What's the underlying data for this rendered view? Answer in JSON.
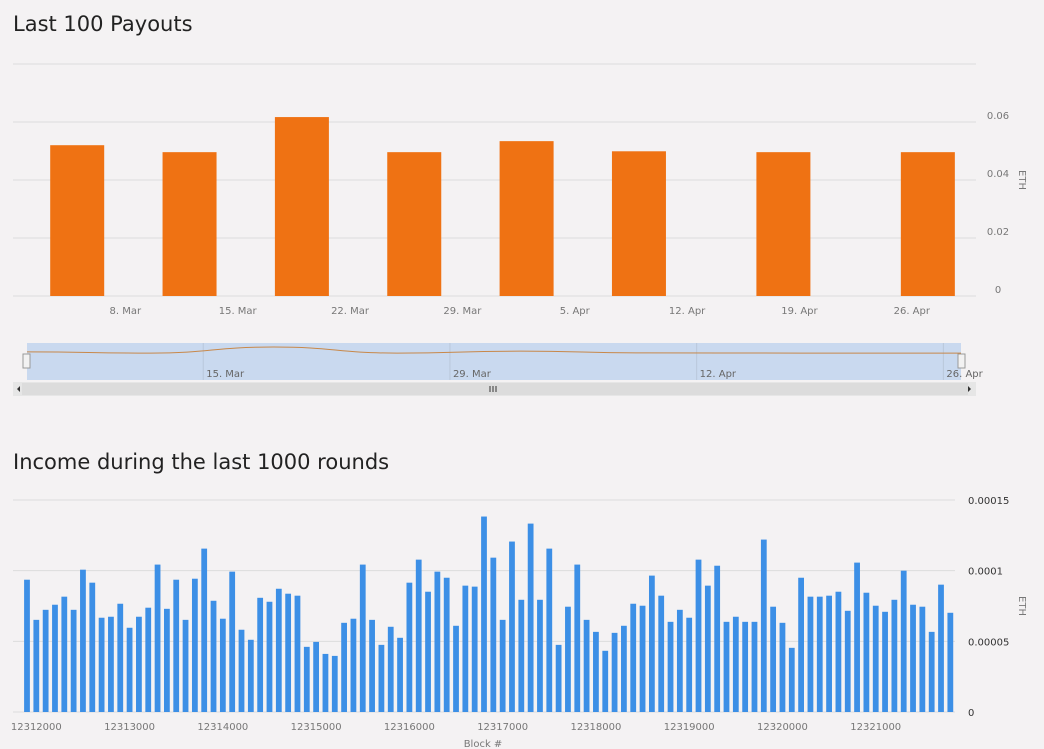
{
  "charts": [
    {
      "type": "bar",
      "title": "Last 100 Payouts",
      "y_axis_label": "ETH",
      "color": "#ef7213",
      "x": [
        "5. Mar",
        "12. Mar",
        "19. Mar",
        "26. Mar",
        "2. Apr",
        "9. Apr",
        "18. Apr",
        "27. Apr"
      ],
      "values": [
        0.052,
        0.0496,
        0.0617,
        0.0496,
        0.0534,
        0.0499,
        0.0496,
        0.0496
      ],
      "xlim": [
        "1. Mar",
        "30. Apr"
      ],
      "xticks": [
        "8. Mar",
        "15. Mar",
        "22. Mar",
        "29. Mar",
        "5. Apr",
        "12. Apr",
        "19. Apr",
        "26. Apr"
      ],
      "ylim": [
        0,
        0.08
      ],
      "yticks": [
        0,
        0.02,
        0.04,
        0.06
      ],
      "grid": true,
      "navigator": {
        "xlim": [
          "5. Mar",
          "27. Apr"
        ],
        "xticks": [
          "15. Mar",
          "29. Mar",
          "12. Apr",
          "26. Apr"
        ],
        "line_color": "#c8884a"
      }
    },
    {
      "type": "bar",
      "title": "Income during the last 1000 rounds",
      "x_axis_label": "Block #",
      "y_axis_label": "ETH",
      "color": "#3c8fe6",
      "x0": 12311900,
      "x_step": 100,
      "values": [
        9.36e-05,
        6.52e-05,
        7.23e-05,
        7.59e-05,
        8.16e-05,
        7.23e-05,
        0.0001007,
        9.15e-05,
        6.67e-05,
        6.74e-05,
        7.66e-05,
        5.96e-05,
        6.74e-05,
        7.38e-05,
        0.0001043,
        7.3e-05,
        9.36e-05,
        6.52e-05,
        9.43e-05,
        0.0001156,
        7.87e-05,
        6.6e-05,
        9.93e-05,
        5.82e-05,
        5.11e-05,
        8.08e-05,
        7.8e-05,
        8.72e-05,
        8.37e-05,
        8.23e-05,
        4.61e-05,
        4.96e-05,
        4.11e-05,
        3.97e-05,
        6.31e-05,
        6.6e-05,
        0.0001043,
        6.52e-05,
        4.75e-05,
        6.03e-05,
        5.25e-05,
        9.15e-05,
        0.0001078,
        8.51e-05,
        9.93e-05,
        9.5e-05,
        6.1e-05,
        8.94e-05,
        8.87e-05,
        0.0001383,
        0.0001092,
        6.52e-05,
        0.0001206,
        7.94e-05,
        0.0001333,
        7.94e-05,
        0.0001156,
        4.75e-05,
        7.45e-05,
        0.0001043,
        6.52e-05,
        5.67e-05,
        4.33e-05,
        5.6e-05,
        6.1e-05,
        7.66e-05,
        7.52e-05,
        9.65e-05,
        8.23e-05,
        6.38e-05,
        7.23e-05,
        6.67e-05,
        0.0001078,
        8.94e-05,
        0.0001035,
        6.38e-05,
        6.74e-05,
        6.38e-05,
        6.38e-05,
        0.000122,
        7.45e-05,
        6.31e-05,
        4.54e-05,
        9.5e-05,
        8.16e-05,
        8.16e-05,
        8.23e-05,
        8.51e-05,
        7.16e-05,
        0.0001057,
        8.44e-05,
        7.52e-05,
        7.09e-05,
        7.94e-05,
        0.0001,
        7.59e-05,
        7.45e-05,
        5.67e-05,
        9.01e-05,
        7.02e-05
      ],
      "xlim": [
        12311750,
        12321850
      ],
      "xticks": [
        12312000,
        12313000,
        12314000,
        12315000,
        12316000,
        12317000,
        12318000,
        12319000,
        12320000,
        12321000
      ],
      "ylim": [
        0,
        0.00015
      ],
      "yticks": [
        0,
        5e-05,
        0.0001,
        0.00015
      ],
      "grid": true
    }
  ]
}
